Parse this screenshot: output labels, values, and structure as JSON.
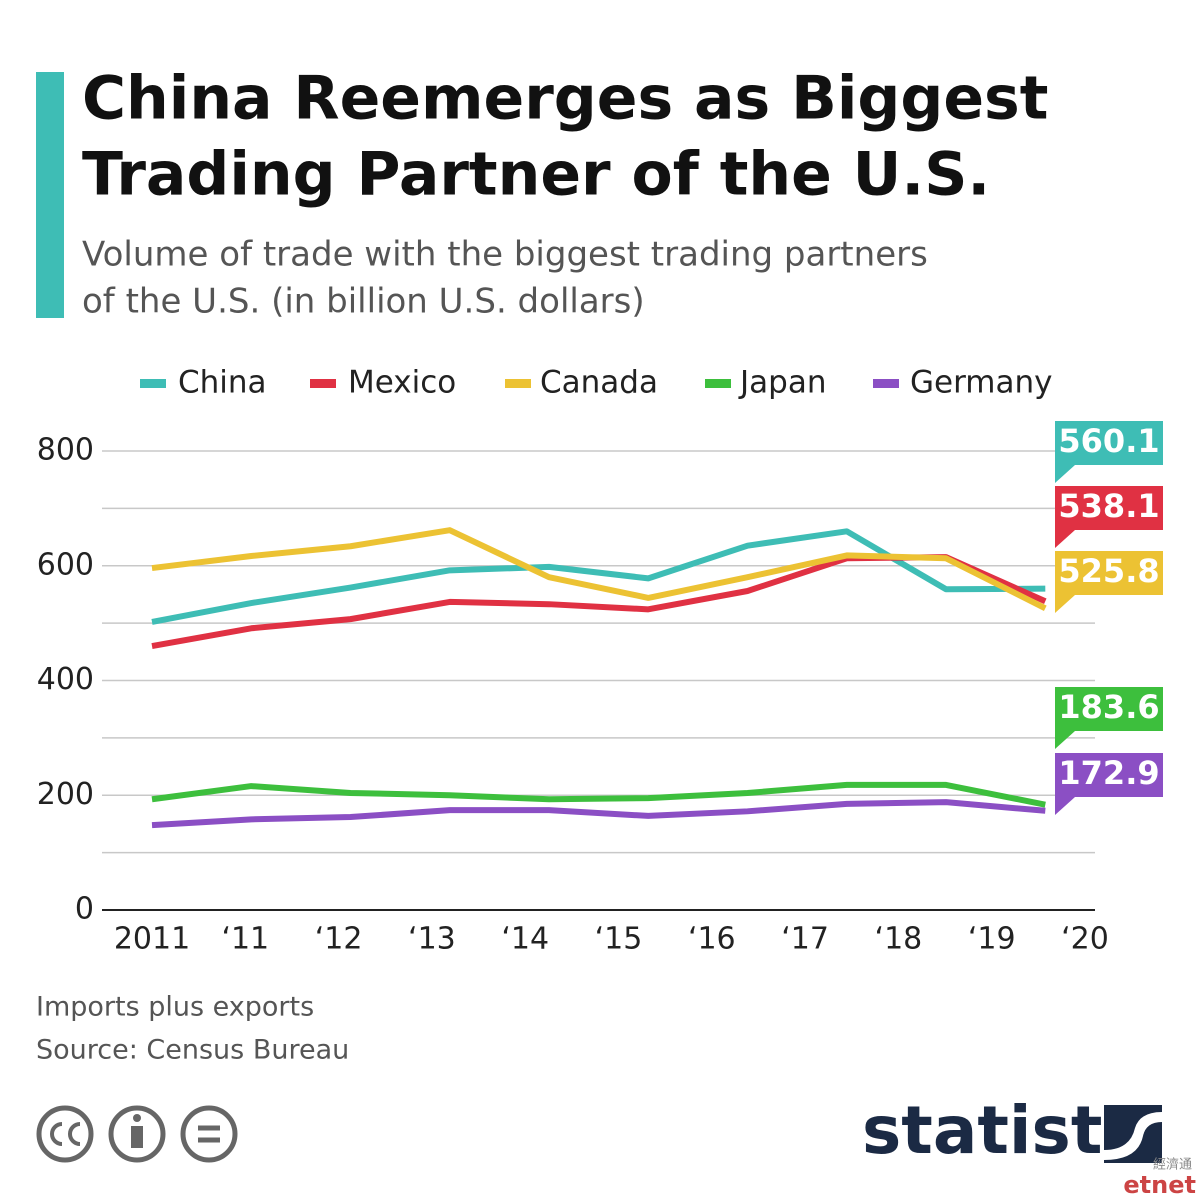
{
  "chart_data": {
    "type": "line",
    "title_lines": [
      "China Reemerges as Biggest",
      "Trading Partner of the U.S."
    ],
    "subtitle_lines": [
      "Volume of trade with the biggest trading partners",
      "of the U.S. (in billion U.S. dollars)"
    ],
    "x": [
      2011,
      2012,
      2013,
      2014,
      2015,
      2016,
      2017,
      2018,
      2019,
      2020
    ],
    "xlim": [
      2011,
      2020.4
    ],
    "xticks": [
      {
        "value": 2011,
        "label": "2011"
      },
      {
        "value": 2011.94,
        "label": "‘11"
      },
      {
        "value": 2012.88,
        "label": "‘12"
      },
      {
        "value": 2013.82,
        "label": "‘13"
      },
      {
        "value": 2014.76,
        "label": "‘14"
      },
      {
        "value": 2015.7,
        "label": "‘15"
      },
      {
        "value": 2016.64,
        "label": "‘16"
      },
      {
        "value": 2017.58,
        "label": "‘17"
      },
      {
        "value": 2018.52,
        "label": "‘18"
      },
      {
        "value": 2019.46,
        "label": "‘19"
      },
      {
        "value": 2020.4,
        "label": "‘20"
      }
    ],
    "ylim": [
      0,
      800
    ],
    "yticks": [
      0,
      200,
      400,
      600,
      800
    ],
    "minor_yticks": [
      100,
      300,
      500,
      700
    ],
    "grid": true,
    "series": [
      {
        "name": "China",
        "color": "#3ebdb5",
        "values": [
          502,
          535,
          562,
          592,
          598,
          578,
          635,
          660,
          559,
          560.1
        ]
      },
      {
        "name": "Mexico",
        "color": "#e03143",
        "values": [
          460,
          491,
          507,
          537,
          533,
          524,
          556,
          613,
          615,
          538.1
        ]
      },
      {
        "name": "Canada",
        "color": "#ecc233",
        "values": [
          596,
          617,
          634,
          662,
          580,
          544,
          580,
          618,
          613,
          525.8
        ]
      },
      {
        "name": "Japan",
        "color": "#3dbf3d",
        "values": [
          193,
          216,
          204,
          200,
          193,
          195,
          204,
          218,
          218,
          183.6
        ]
      },
      {
        "name": "Germany",
        "color": "#8b4fc4",
        "values": [
          148,
          158,
          162,
          174,
          174,
          164,
          172,
          185,
          188,
          172.9
        ]
      }
    ],
    "notes": [
      "Imports plus exports",
      "Source: Census Bureau"
    ],
    "brand": "statista",
    "watermark": "etnet",
    "watermark_cn": "經濟通"
  }
}
